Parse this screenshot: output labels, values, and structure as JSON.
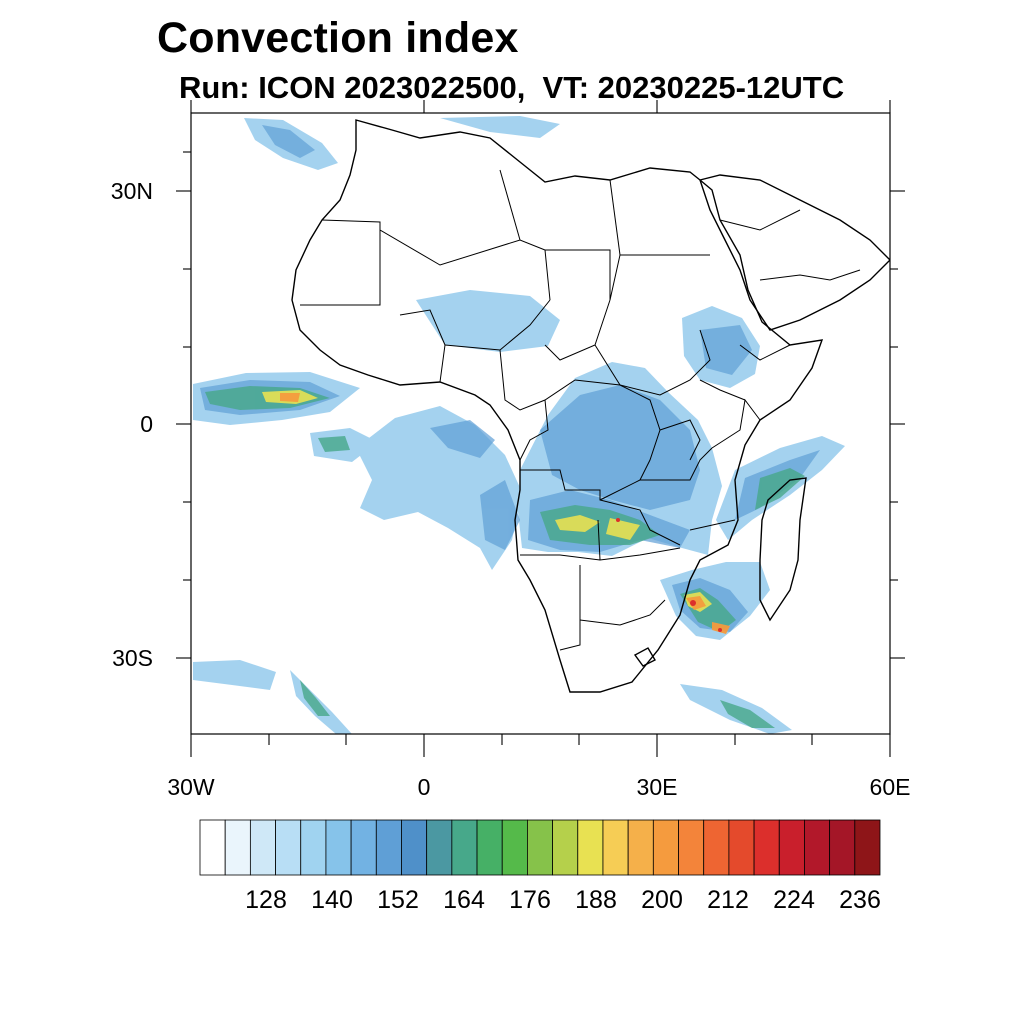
{
  "header": {
    "title": "Convection index",
    "subtitle": "Run: ICON 2023022500,  VT: 20230225-12UTC"
  },
  "map": {
    "lat_labels": [
      "30N",
      "0",
      "30S"
    ],
    "lon_labels": [
      "30W",
      "0",
      "30E",
      "60E"
    ],
    "extent": {
      "lon": [
        -30,
        60
      ],
      "lat": [
        -40,
        40
      ]
    }
  },
  "colorbar": {
    "labels": [
      "128",
      "140",
      "152",
      "164",
      "176",
      "188",
      "200",
      "212",
      "224",
      "236"
    ],
    "colors": [
      "#ffffff",
      "#eaf5fc",
      "#cfe8f7",
      "#b8def5",
      "#a0d3f0",
      "#86c3ea",
      "#72b2e3",
      "#5f9fd6",
      "#4f90c9",
      "#4b98a2",
      "#47a88a",
      "#46b066",
      "#55ba4a",
      "#86c24a",
      "#b5d04b",
      "#e8e152",
      "#f6cd55",
      "#f5b04a",
      "#f59b3e",
      "#f3843a",
      "#ee6532",
      "#e44a2c",
      "#dc2f2c",
      "#c91f2c",
      "#b2182a",
      "#a41627",
      "#8e1518"
    ]
  }
}
